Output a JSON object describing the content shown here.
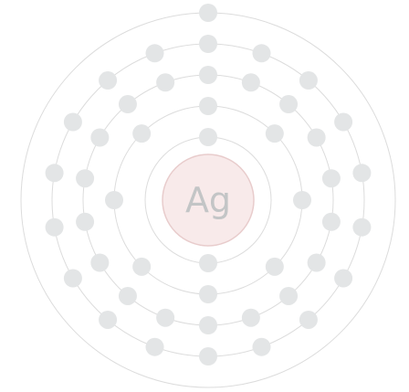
{
  "element": {
    "symbol": "Ag"
  },
  "shells": [
    {
      "electrons": 2
    },
    {
      "electrons": 8
    },
    {
      "electrons": 18
    },
    {
      "electrons": 18
    },
    {
      "electrons": 1
    }
  ],
  "colors": {
    "nucleus_fill": "#f8eaea",
    "nucleus_stroke": "#e8cccc",
    "electron": "#e3e5e6",
    "shell": "#dcdcdc",
    "symbol_text": "#c3c5c6",
    "background": "#ffffff"
  }
}
